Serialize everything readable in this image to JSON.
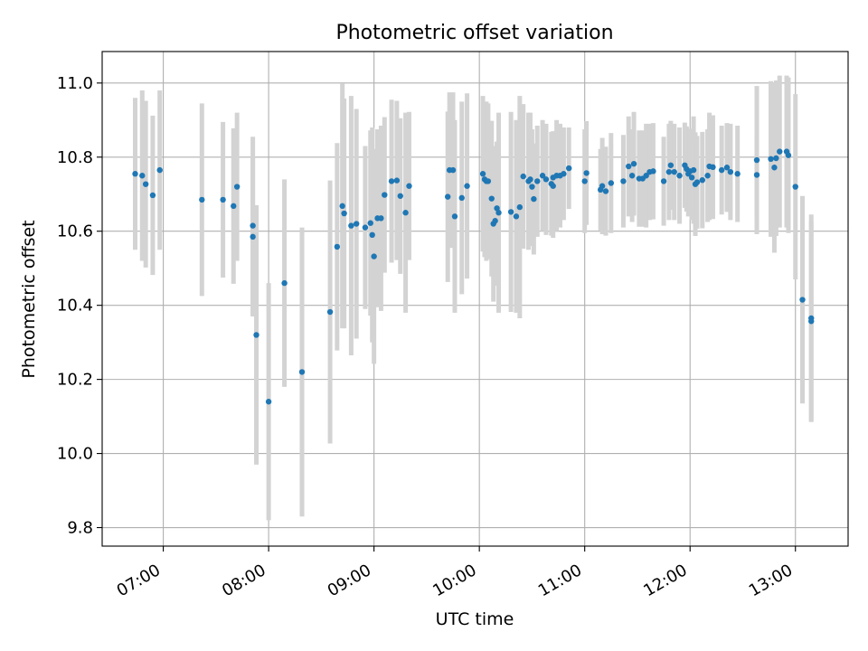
{
  "chart_data": {
    "type": "scatter",
    "title": "Photometric offset variation",
    "xlabel": "UTC time",
    "ylabel": "Photometric offset",
    "x_tick_labels": [
      "07:00",
      "08:00",
      "09:00",
      "10:00",
      "11:00",
      "12:00",
      "13:00"
    ],
    "y_tick_labels": [
      "9.8",
      "10.0",
      "10.2",
      "10.4",
      "10.6",
      "10.8",
      "11.0"
    ],
    "y_ticks": [
      9.8,
      10.0,
      10.2,
      10.4,
      10.6,
      10.8,
      11.0
    ],
    "x_ticks_hours": [
      7,
      8,
      9,
      10,
      11,
      12,
      13
    ],
    "xlim_hours": [
      6.42,
      13.5
    ],
    "ylim": [
      9.75,
      11.085
    ],
    "grid": true,
    "legend": "none",
    "errorbar_color": "#d3d3d3",
    "point_color": "#1f77b4",
    "series": [
      {
        "x_time": [
          "06:44",
          "06:48",
          "06:50",
          "06:54",
          "06:58",
          "07:22",
          "07:34",
          "07:40",
          "07:42",
          "07:51",
          "07:51",
          "07:53",
          "08:00",
          "08:09",
          "08:19",
          "08:35",
          "08:39",
          "08:42",
          "08:43",
          "08:47",
          "08:50",
          "08:55",
          "08:58",
          "08:59",
          "09:00",
          "09:02",
          "09:04",
          "09:06",
          "09:10",
          "09:13",
          "09:15",
          "09:18",
          "09:20",
          "09:42",
          "09:43",
          "09:45",
          "09:46",
          "09:50",
          "09:53",
          "10:02",
          "10:03",
          "10:04",
          "10:05",
          "10:07",
          "10:08",
          "10:09",
          "10:10",
          "10:11",
          "10:18",
          "10:21",
          "10:23",
          "10:25",
          "10:28",
          "10:29",
          "10:30",
          "10:31",
          "10:33",
          "10:36",
          "10:38",
          "10:41",
          "10:42",
          "10:42",
          "10:44",
          "10:46",
          "10:48",
          "10:51",
          "11:00",
          "11:01",
          "11:09",
          "11:10",
          "11:12",
          "11:15",
          "11:22",
          "11:25",
          "11:27",
          "11:28",
          "11:31",
          "11:33",
          "11:35",
          "11:37",
          "11:39",
          "11:45",
          "11:48",
          "11:49",
          "11:51",
          "11:54",
          "11:57",
          "11:58",
          "11:59",
          "12:00",
          "12:01",
          "12:02",
          "12:03",
          "12:04",
          "12:07",
          "12:10",
          "12:11",
          "12:13",
          "12:18",
          "12:21",
          "12:23",
          "12:27",
          "12:38",
          "12:38",
          "12:46",
          "12:48",
          "12:49",
          "12:51",
          "12:55",
          "12:56",
          "13:00",
          "13:04",
          "13:09",
          "13:09"
        ],
        "y": [
          10.755,
          10.75,
          10.727,
          10.697,
          10.765,
          10.685,
          10.685,
          10.668,
          10.72,
          10.615,
          10.585,
          10.32,
          10.14,
          10.46,
          10.22,
          10.382,
          10.558,
          10.668,
          10.648,
          10.615,
          10.62,
          10.61,
          10.622,
          10.59,
          10.532,
          10.635,
          10.635,
          10.698,
          10.735,
          10.737,
          10.695,
          10.65,
          10.722,
          10.693,
          10.765,
          10.765,
          10.64,
          10.69,
          10.722,
          10.755,
          10.74,
          10.735,
          10.735,
          10.688,
          10.62,
          10.628,
          10.662,
          10.65,
          10.652,
          10.64,
          10.665,
          10.748,
          10.735,
          10.74,
          10.72,
          10.687,
          10.735,
          10.75,
          10.74,
          10.728,
          10.745,
          10.722,
          10.75,
          10.75,
          10.755,
          10.77,
          10.735,
          10.757,
          10.712,
          10.722,
          10.708,
          10.73,
          10.735,
          10.775,
          10.75,
          10.782,
          10.742,
          10.742,
          10.75,
          10.76,
          10.762,
          10.735,
          10.76,
          10.778,
          10.76,
          10.75,
          10.778,
          10.768,
          10.755,
          10.762,
          10.745,
          10.765,
          10.727,
          10.732,
          10.738,
          10.75,
          10.775,
          10.773,
          10.765,
          10.772,
          10.76,
          10.755,
          10.752,
          10.792,
          10.795,
          10.772,
          10.797,
          10.815,
          10.815,
          10.805,
          10.72,
          10.415,
          10.365,
          10.357
        ],
        "yerr": [
          0.205,
          0.23,
          0.225,
          0.215,
          0.215,
          0.26,
          0.21,
          0.21,
          0.2,
          0.24,
          0.215,
          0.35,
          0.32,
          0.28,
          0.39,
          0.355,
          0.28,
          0.33,
          0.31,
          0.35,
          0.31,
          0.22,
          0.25,
          0.29,
          0.29,
          0.24,
          0.25,
          0.21,
          0.22,
          0.215,
          0.21,
          0.27,
          0.2,
          0.23,
          0.21,
          0.21,
          0.26,
          0.26,
          0.25,
          0.21,
          0.21,
          0.215,
          0.21,
          0.21,
          0.21,
          0.175,
          0.18,
          0.27,
          0.27,
          0.26,
          0.3,
          0.195,
          0.185,
          0.18,
          0.155,
          0.15,
          0.15,
          0.15,
          0.15,
          0.14,
          0.125,
          0.14,
          0.15,
          0.14,
          0.125,
          0.11,
          0.14,
          0.14,
          0.11,
          0.13,
          0.12,
          0.135,
          0.125,
          0.135,
          0.125,
          0.14,
          0.13,
          0.13,
          0.14,
          0.13,
          0.13,
          0.12,
          0.13,
          0.12,
          0.13,
          0.13,
          0.115,
          0.115,
          0.115,
          0.115,
          0.115,
          0.145,
          0.14,
          0.125,
          0.13,
          0.125,
          0.145,
          0.14,
          0.12,
          0.12,
          0.13,
          0.13,
          0.105,
          0.2,
          0.21,
          0.23,
          0.21,
          0.205,
          0.205,
          0.21,
          0.25,
          0.28,
          0.28,
          0.27
        ]
      }
    ]
  }
}
